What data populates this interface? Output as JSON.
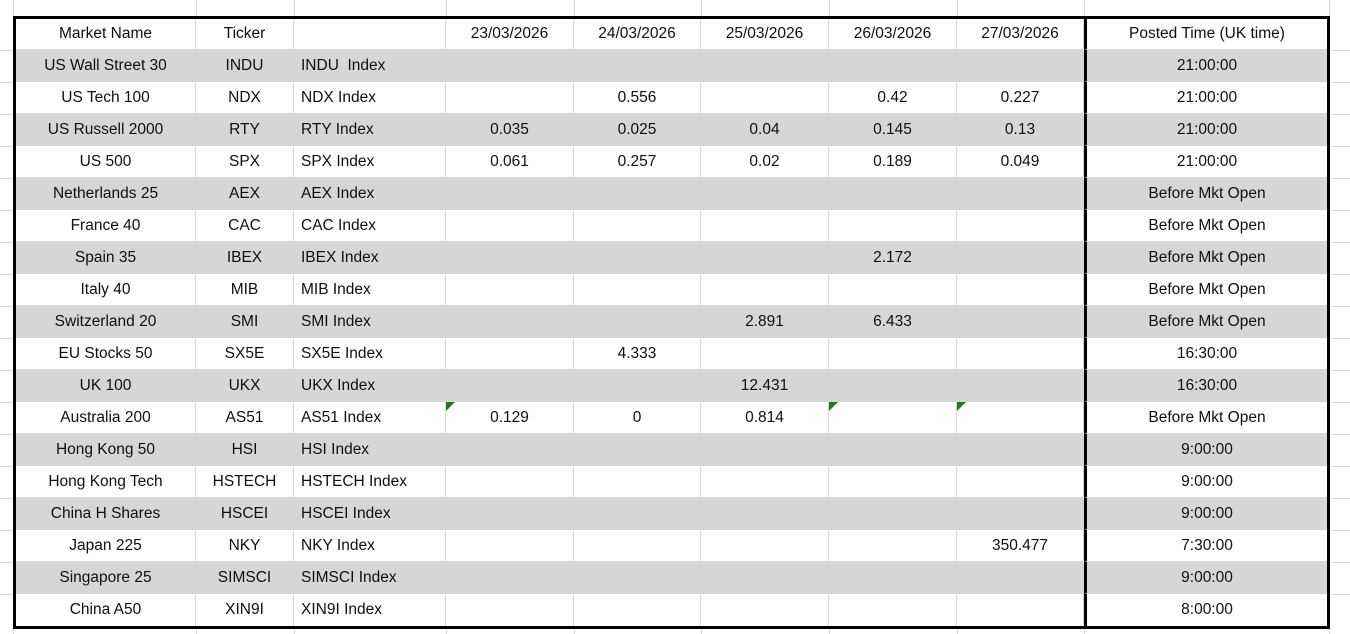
{
  "table": {
    "header": [
      "Market Name",
      "Ticker",
      "",
      "23/03/2026",
      "24/03/2026",
      "25/03/2026",
      "26/03/2026",
      "27/03/2026",
      "Posted Time (UK time)"
    ],
    "rows": [
      {
        "cells": [
          "US Wall Street 30",
          "INDU",
          "INDU  Index",
          "",
          "",
          "",
          "",
          "",
          "21:00:00"
        ]
      },
      {
        "cells": [
          "US Tech 100",
          "NDX",
          "NDX Index",
          "",
          "0.556",
          "",
          "0.42",
          "0.227",
          "21:00:00"
        ]
      },
      {
        "cells": [
          "US Russell 2000",
          "RTY",
          "RTY Index",
          "0.035",
          "0.025",
          "0.04",
          "0.145",
          "0.13",
          "21:00:00"
        ]
      },
      {
        "cells": [
          "US 500",
          "SPX",
          "SPX Index",
          "0.061",
          "0.257",
          "0.02",
          "0.189",
          "0.049",
          "21:00:00"
        ]
      },
      {
        "cells": [
          "Netherlands 25",
          "AEX",
          "AEX Index",
          "",
          "",
          "",
          "",
          "",
          "Before Mkt Open"
        ]
      },
      {
        "cells": [
          "France 40",
          "CAC",
          "CAC Index",
          "",
          "",
          "",
          "",
          "",
          "Before Mkt Open"
        ]
      },
      {
        "cells": [
          "Spain 35",
          "IBEX",
          "IBEX Index",
          "",
          "",
          "",
          "2.172",
          "",
          "Before Mkt Open"
        ]
      },
      {
        "cells": [
          "Italy 40",
          "MIB",
          "MIB Index",
          "",
          "",
          "",
          "",
          "",
          "Before Mkt Open"
        ]
      },
      {
        "cells": [
          "Switzerland 20",
          "SMI",
          "SMI Index",
          "",
          "",
          "2.891",
          "6.433",
          "",
          "Before Mkt Open"
        ]
      },
      {
        "cells": [
          "EU Stocks 50",
          "SX5E",
          "SX5E Index",
          "",
          "4.333",
          "",
          "",
          "",
          "16:30:00"
        ]
      },
      {
        "cells": [
          "UK 100",
          "UKX",
          "UKX Index",
          "",
          "",
          "12.431",
          "",
          "",
          "16:30:00"
        ]
      },
      {
        "cells": [
          "Australia 200",
          "AS51",
          "AS51 Index",
          "0.129",
          "0",
          "0.814",
          "",
          "",
          "Before Mkt Open"
        ]
      },
      {
        "cells": [
          "Hong Kong 50",
          "HSI",
          "HSI Index",
          "",
          "",
          "",
          "",
          "",
          "9:00:00"
        ]
      },
      {
        "cells": [
          "Hong Kong Tech",
          "HSTECH",
          "HSTECH Index",
          "",
          "",
          "",
          "",
          "",
          "9:00:00"
        ]
      },
      {
        "cells": [
          "China H Shares",
          "HSCEI",
          "HSCEI Index",
          "",
          "",
          "",
          "",
          "",
          "9:00:00"
        ]
      },
      {
        "cells": [
          "Japan 225",
          "NKY",
          "NKY Index",
          "",
          "",
          "",
          "",
          "350.477",
          "7:30:00"
        ]
      },
      {
        "cells": [
          "Singapore 25",
          "SIMSCI",
          "SIMSCI Index",
          "",
          "",
          "",
          "",
          "",
          "9:00:00"
        ]
      },
      {
        "cells": [
          "China A50",
          "XIN9I",
          "XIN9I Index",
          "",
          "",
          "",
          "",
          "",
          "8:00:00"
        ]
      }
    ],
    "error_indicator_cells": [
      {
        "row_index": 11,
        "col_index": 3
      },
      {
        "row_index": 11,
        "col_index": 6
      },
      {
        "row_index": 11,
        "col_index": 7
      }
    ]
  },
  "colors": {
    "row_stripe_gray": "#d6d6d6",
    "table_border_black": "#000000",
    "gridline_gray": "#d9d9d9",
    "error_indicator_green": "#1d7a1d",
    "text": "#0f0f0f"
  }
}
